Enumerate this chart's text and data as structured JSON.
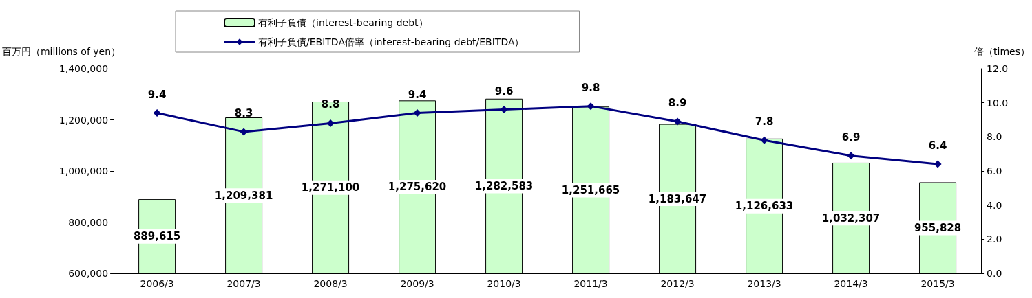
{
  "chart_data": {
    "type": "bar",
    "ylabel": "百万円（millions of yen）",
    "y2label": "倍（times）",
    "categories": [
      "2006/3",
      "2007/3",
      "2008/3",
      "2009/3",
      "2010/3",
      "2011/3",
      "2012/3",
      "2013/3",
      "2014/3",
      "2015/3"
    ],
    "series": [
      {
        "name": "有利子負債（interest-bearing debt）",
        "color": "#ccffcc",
        "values": [
          889615,
          1209381,
          1271100,
          1275620,
          1282583,
          1251665,
          1183647,
          1126633,
          1032307,
          955828
        ],
        "value_labels": [
          "889,615",
          "1,209,381",
          "1,271,100",
          "1,275,620",
          "1,282,583",
          "1,251,665",
          "1,183,647",
          "1,126,633",
          "1,032,307",
          "955,828"
        ]
      },
      {
        "name": "有利子負債/EBITDA倍率（interest-bearing debt/EBITDA）",
        "type": "line",
        "axis": "y2",
        "color": "#000080",
        "marker": "diamond",
        "values": [
          9.4,
          8.3,
          8.8,
          9.4,
          9.6,
          9.8,
          8.9,
          7.8,
          6.9,
          6.4
        ],
        "value_labels": [
          "9.4",
          "8.3",
          "8.8",
          "9.4",
          "9.6",
          "9.8",
          "8.9",
          "7.8",
          "6.9",
          "6.4"
        ]
      }
    ],
    "ylim": [
      600000,
      1400000
    ],
    "yticks": [
      {
        "value": 600000,
        "label": "600,000"
      },
      {
        "value": 800000,
        "label": "800,000"
      },
      {
        "value": 1000000,
        "label": "1,000,000"
      },
      {
        "value": 1200000,
        "label": "1,200,000"
      },
      {
        "value": 1400000,
        "label": "1,400,000"
      }
    ],
    "y2lim": [
      0,
      12
    ],
    "y2ticks": [
      {
        "value": 0,
        "label": "0.0"
      },
      {
        "value": 2,
        "label": "2.0"
      },
      {
        "value": 4,
        "label": "4.0"
      },
      {
        "value": 6,
        "label": "6.0"
      },
      {
        "value": 8,
        "label": "8.0"
      },
      {
        "value": 10,
        "label": "10.0"
      },
      {
        "value": 12,
        "label": "12.0"
      }
    ],
    "legend": "top",
    "grid": false
  }
}
